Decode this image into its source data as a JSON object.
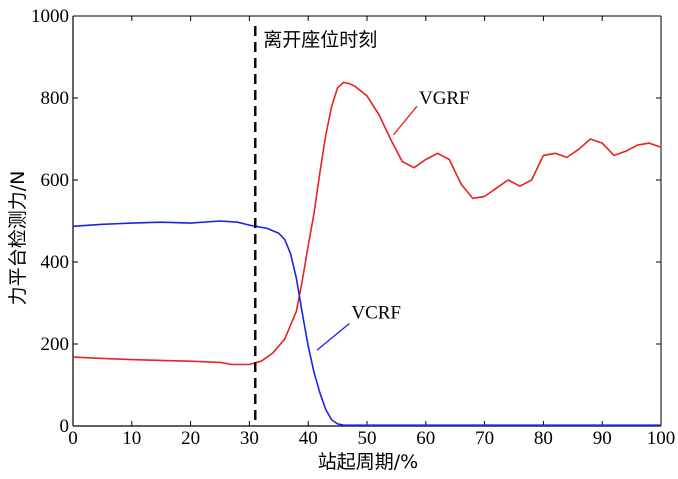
{
  "chart_data": {
    "type": "line",
    "title": "",
    "xlabel": "站起周期/%",
    "ylabel": "力平台检测力/N",
    "xlim": [
      0,
      100
    ],
    "ylim": [
      0,
      1000
    ],
    "xticks": [
      0,
      10,
      20,
      30,
      40,
      50,
      60,
      70,
      80,
      90,
      100
    ],
    "yticks": [
      0,
      200,
      400,
      600,
      800,
      1000
    ],
    "grid": false,
    "legend": "none",
    "series": [
      {
        "name": "VGRF",
        "color": "#e8221c",
        "x": [
          0,
          5,
          10,
          15,
          20,
          25,
          27,
          30,
          32,
          34,
          36,
          38,
          39,
          40,
          41,
          42,
          43,
          44,
          45,
          46,
          47,
          48,
          50,
          52,
          54,
          56,
          58,
          60,
          62,
          64,
          66,
          68,
          70,
          72,
          74,
          76,
          78,
          80,
          82,
          84,
          86,
          88,
          90,
          92,
          94,
          96,
          98,
          100
        ],
        "y": [
          168,
          165,
          162,
          160,
          158,
          155,
          150,
          150,
          158,
          178,
          212,
          280,
          355,
          440,
          520,
          620,
          710,
          780,
          825,
          838,
          835,
          828,
          805,
          760,
          700,
          645,
          630,
          650,
          665,
          650,
          590,
          555,
          560,
          580,
          600,
          585,
          600,
          660,
          665,
          655,
          675,
          700,
          690,
          660,
          670,
          685,
          690,
          680
        ]
      },
      {
        "name": "VCRF",
        "color": "#1c22e8",
        "x": [
          0,
          5,
          10,
          15,
          20,
          25,
          28,
          30,
          33,
          35,
          36,
          37,
          38,
          39,
          40,
          41,
          42,
          43,
          44,
          45,
          46,
          50,
          60,
          70,
          80,
          90,
          100
        ],
        "y": [
          487,
          492,
          495,
          497,
          495,
          500,
          497,
          490,
          482,
          470,
          455,
          420,
          360,
          275,
          195,
          130,
          80,
          40,
          15,
          5,
          2,
          2,
          2,
          2,
          2,
          2,
          2
        ]
      }
    ],
    "annotations": [
      {
        "type": "vline",
        "x": 31,
        "style": "dashed",
        "color": "#000000",
        "text": "离开座位时刻"
      },
      {
        "type": "series-label",
        "series": "VGRF",
        "text": "VGRF"
      },
      {
        "type": "series-label",
        "series": "VCRF",
        "text": "VCRF"
      }
    ]
  }
}
